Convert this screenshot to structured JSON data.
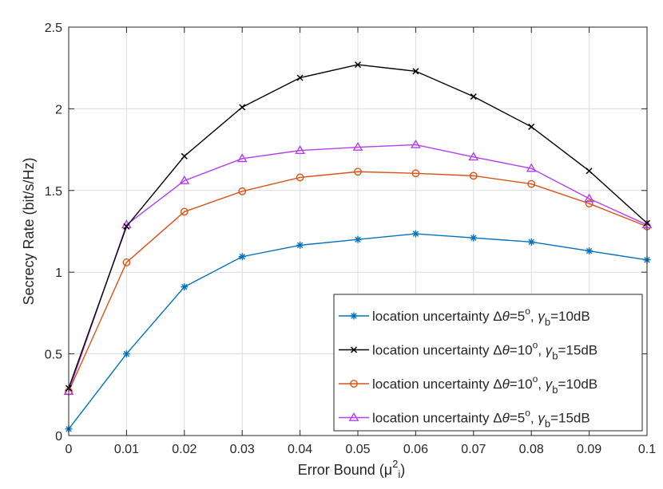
{
  "chart_data": {
    "type": "line",
    "title": "",
    "xlabel": "Error Bound (μ",
    "xlabel_sup": "2",
    "xlabel_sub": "i",
    "xlabel_close": ")",
    "ylabel": "Secrecy Rate (bit/s/Hz)",
    "xlim": [
      0,
      0.1
    ],
    "ylim": [
      0,
      2.5
    ],
    "grid": true,
    "legend_position": "bottom-right",
    "x": [
      0,
      0.01,
      0.02,
      0.03,
      0.04,
      0.05,
      0.06,
      0.07,
      0.08,
      0.09,
      0.1
    ],
    "x_tick_labels": [
      "0",
      "0.01",
      "0.02",
      "0.03",
      "0.04",
      "0.05",
      "0.06",
      "0.07",
      "0.08",
      "0.09",
      "0.1"
    ],
    "y_ticks": [
      0,
      0.5,
      1,
      1.5,
      2,
      2.5
    ],
    "y_tick_labels": [
      "0",
      "0.5",
      "1",
      "1.5",
      "2",
      "2.5"
    ],
    "series": [
      {
        "legend": {
          "prefix": "location uncertainty Δ",
          "theta": "θ",
          "eq": "=5",
          "deg": "o",
          "sep": ", ",
          "gamma": "γ",
          "sub": "b",
          "val": "=10dB"
        },
        "color": "#0072bd",
        "marker": "asterisk",
        "values": [
          0.04,
          0.5,
          0.91,
          1.095,
          1.165,
          1.2,
          1.235,
          1.21,
          1.185,
          1.13,
          1.075
        ]
      },
      {
        "legend": {
          "prefix": "location uncertainty Δ",
          "theta": "θ",
          "eq": "=10",
          "deg": "o",
          "sep": ", ",
          "gamma": "γ",
          "sub": "b",
          "val": "=15dB"
        },
        "color": "#000000",
        "marker": "x",
        "values": [
          0.29,
          1.28,
          1.71,
          2.01,
          2.19,
          2.27,
          2.23,
          2.075,
          1.89,
          1.62,
          1.3
        ]
      },
      {
        "legend": {
          "prefix": "location uncertainty Δ",
          "theta": "θ",
          "eq": "=10",
          "deg": "o",
          "sep": ", ",
          "gamma": "γ",
          "sub": "b",
          "val": "=10dB"
        },
        "color": "#d95319",
        "marker": "circle",
        "values": [
          0.27,
          1.06,
          1.37,
          1.495,
          1.58,
          1.615,
          1.605,
          1.59,
          1.54,
          1.42,
          1.28
        ]
      },
      {
        "legend": {
          "prefix": "location uncertainty Δ",
          "theta": "θ",
          "eq": "=5",
          "deg": "o",
          "sep": ", ",
          "gamma": "γ",
          "sub": "b",
          "val": "=15dB"
        },
        "color": "#b040f0",
        "marker": "triangle",
        "values": [
          0.27,
          1.29,
          1.56,
          1.695,
          1.745,
          1.765,
          1.78,
          1.705,
          1.635,
          1.45,
          1.29
        ]
      }
    ]
  }
}
